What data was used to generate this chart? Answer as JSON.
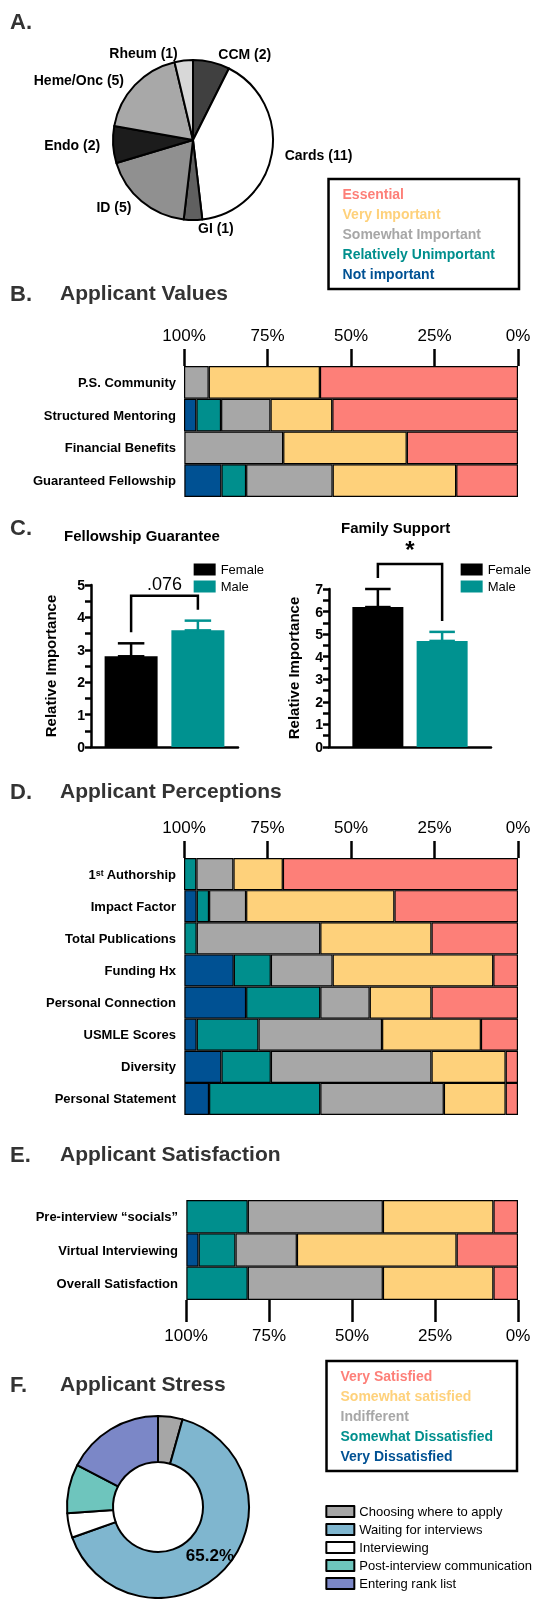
{
  "chart_data": [
    {
      "type": "pie",
      "categories": [
        "CCM (2)",
        "Cards (11)",
        "GI (1)",
        "ID (5)",
        "Endo (2)",
        "Heme/Onc (5)",
        "Rheum (1)"
      ],
      "values": [
        2,
        11,
        1,
        5,
        2,
        5,
        1
      ],
      "colors": [
        "#404040",
        "#ffffff",
        "#606060",
        "#909090",
        "#1c1c1c",
        "#a8a8a8",
        "#d8d8d8"
      ],
      "annotations": [
        "A."
      ]
    },
    {
      "type": "bar",
      "title": "Applicant Values",
      "orientation": "horizontal",
      "stacked": true,
      "legend": "top right",
      "annotations": [
        "B."
      ],
      "categories": [
        "P.S. Community",
        "Structured Mentoring",
        "Financial Benefits",
        "Guaranteed Fellowship"
      ],
      "xlim": [
        100,
        0
      ],
      "xticks": [
        {
          "value": 100,
          "label": "100%"
        },
        {
          "value": 75,
          "label": "75%"
        },
        {
          "value": 50,
          "label": "50%"
        },
        {
          "value": 25,
          "label": "25%"
        },
        {
          "value": 0,
          "label": "0%"
        }
      ],
      "series": [
        {
          "name": "Essential",
          "color": "#fd7f78",
          "values": [
            59.3,
            55.6,
            33.3,
            18.5
          ]
        },
        {
          "name": "Very Important",
          "color": "#fed17b",
          "values": [
            33.3,
            18.5,
            37.0,
            37.0
          ]
        },
        {
          "name": "Somewhat Important",
          "color": "#a7a7a7",
          "values": [
            7.4,
            14.8,
            29.6,
            25.9
          ]
        },
        {
          "name": "Relatively Unimportant",
          "color": "#008f8d",
          "values": [
            null,
            7.4,
            null,
            7.4
          ]
        },
        {
          "name": "Not important",
          "color": "#005193",
          "values": [
            null,
            3.7,
            null,
            11.1
          ]
        }
      ]
    },
    {
      "type": "bar",
      "title": "Fellowship Guarantee",
      "ylabel": "Relative Importance",
      "categories": [
        null
      ],
      "legend": "top right",
      "tick_labels": "y",
      "annotations": [
        "C.",
        {
          "text": ".076"
        }
      ],
      "ylim": [
        0,
        5
      ],
      "yticks": [
        0,
        {
          "value": 0.5,
          "label": null
        },
        1,
        {
          "value": 1.5,
          "label": null
        },
        2,
        {
          "value": 2.5,
          "label": null
        },
        3,
        {
          "value": 3.5,
          "label": null
        },
        4,
        {
          "value": 4.5,
          "label": null
        },
        5
      ],
      "series": [
        {
          "name": "Female",
          "color": "#000000",
          "values": [
            2.8
          ],
          "errors": [
            [
              2.8,
              3.2
            ]
          ]
        },
        {
          "name": "Male",
          "color": "#009290",
          "values": [
            3.6
          ],
          "errors": [
            [
              3.6,
              3.9
            ]
          ]
        }
      ]
    },
    {
      "type": "bar",
      "title": "Family Support",
      "ylabel": "Relative Importance",
      "categories": [
        null
      ],
      "legend": "top right",
      "tick_labels": "y",
      "annotations": [
        {
          "text": "*"
        }
      ],
      "ylim": [
        0,
        7
      ],
      "yticks": [
        0,
        {
          "value": 0.5,
          "label": null
        },
        1,
        {
          "value": 1.5,
          "label": null
        },
        2,
        {
          "value": 2.5,
          "label": null
        },
        3,
        {
          "value": 3.5,
          "label": null
        },
        4,
        {
          "value": 4.5,
          "label": null
        },
        5,
        {
          "value": 5.5,
          "label": null
        },
        6,
        {
          "value": 6.5,
          "label": null
        },
        7
      ],
      "series": [
        {
          "name": "Female",
          "color": "#000000",
          "values": [
            6.2
          ],
          "errors": [
            [
              6.2,
              7.0
            ]
          ]
        },
        {
          "name": "Male",
          "color": "#009290",
          "values": [
            4.7
          ],
          "errors": [
            [
              4.7,
              5.1
            ]
          ]
        }
      ]
    },
    {
      "type": "bar",
      "title": "Applicant Perceptions",
      "orientation": "horizontal",
      "stacked": true,
      "annotations": [
        "D."
      ],
      "categories": [
        "1ˢᵗ Authorship",
        "Impact Factor",
        "Total Publications",
        "Funding Hx",
        "Personal Connection",
        "USMLE Scores",
        "Diversity",
        "Personal Statement"
      ],
      "xlim": [
        100,
        0
      ],
      "xticks": [
        {
          "value": 100,
          "label": "100%"
        },
        {
          "value": 75,
          "label": "75%"
        },
        {
          "value": 50,
          "label": "50%"
        },
        {
          "value": 25,
          "label": "25%"
        },
        {
          "value": 0,
          "label": "0%"
        }
      ],
      "series": [
        {
          "color": "#fd7f78",
          "values": [
            70.4,
            37.0,
            25.9,
            7.4,
            25.9,
            11.1,
            3.7,
            3.7
          ]
        },
        {
          "color": "#fed17b",
          "values": [
            14.8,
            44.4,
            33.3,
            48.1,
            18.5,
            29.6,
            22.2,
            18.5
          ]
        },
        {
          "color": "#a7a7a7",
          "values": [
            11.1,
            11.1,
            37.0,
            18.5,
            14.8,
            37.0,
            48.1,
            37.0
          ]
        },
        {
          "color": "#008f8d",
          "values": [
            3.7,
            3.7,
            3.7,
            11.1,
            22.2,
            18.5,
            14.8,
            33.3
          ]
        },
        {
          "color": "#005193",
          "values": [
            null,
            3.7,
            null,
            14.8,
            18.5,
            3.7,
            11.1,
            7.4
          ]
        }
      ]
    },
    {
      "type": "bar",
      "title": "Applicant Satisfaction",
      "orientation": "horizontal",
      "stacked": true,
      "legend": "bottom right",
      "annotations": [
        "E."
      ],
      "categories": [
        "Pre-interview “socials”",
        "Virtual Interviewing",
        "Overall Satisfaction"
      ],
      "xlim": [
        100,
        0
      ],
      "xticks": [
        {
          "value": 100,
          "label": "100%"
        },
        {
          "value": 75,
          "label": "75%"
        },
        {
          "value": 50,
          "label": "50%"
        },
        {
          "value": 25,
          "label": "25%"
        },
        {
          "value": 0,
          "label": "0%"
        }
      ],
      "series": [
        {
          "name": "Very Satisfied",
          "color": "#fd7f78",
          "values": [
            7.4,
            18.5,
            7.4
          ]
        },
        {
          "name": "Somewhat satisfied",
          "color": "#fed17b",
          "values": [
            33.3,
            48.1,
            33.3
          ]
        },
        {
          "name": "Indifferent",
          "color": "#a7a7a7",
          "values": [
            40.7,
            18.5,
            40.7
          ]
        },
        {
          "name": "Somewhat Dissatisfied",
          "color": "#008f8d",
          "values": [
            18.5,
            11.1,
            18.5
          ]
        },
        {
          "name": "Very Dissatisfied",
          "color": "#005193",
          "values": [
            null,
            3.7,
            null
          ]
        }
      ]
    },
    {
      "type": "donut",
      "title": "Applicant Stress",
      "legend": "bottom right",
      "annotations": [
        "F."
      ],
      "categories": [
        "Choosing where to apply",
        "Waiting for interviews",
        "Interviewing",
        "Post-interview communication",
        "Entering rank list"
      ],
      "values": [
        4.35,
        65.2,
        4.35,
        8.7,
        17.4
      ],
      "colors": [
        "#a6a6a6",
        "#7fb6cf",
        "#ffffff",
        "#6ec5bd",
        "#7b87c7"
      ],
      "value_labels": [
        null,
        "65.2%",
        null,
        null,
        null
      ]
    }
  ]
}
